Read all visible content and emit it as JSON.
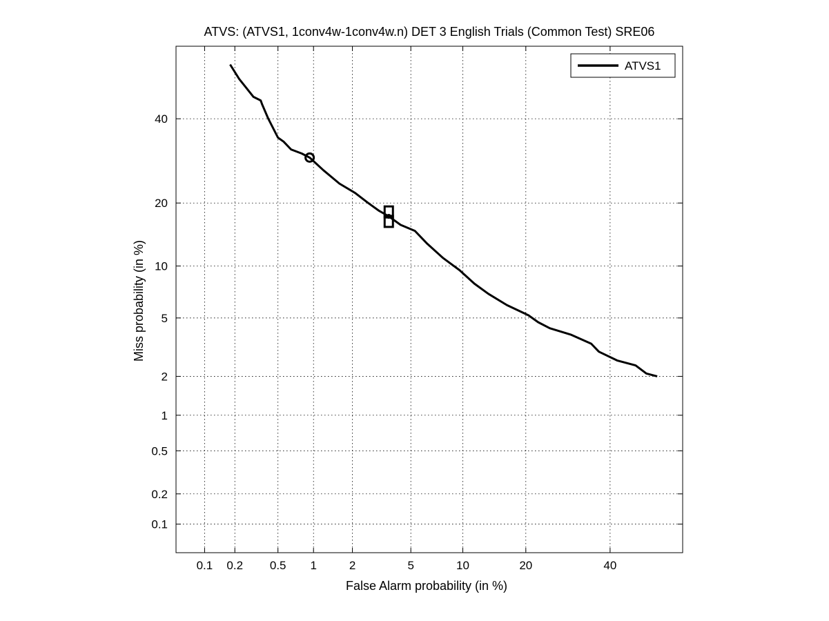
{
  "chart_data": {
    "type": "line",
    "title": "ATVS: (ATVS1, 1conv4w-1conv4w.n) DET 3 English Trials (Common Test) SRE06",
    "xlabel": "False Alarm probability (in %)",
    "ylabel": "Miss probability (in %)",
    "x_scale": "probit",
    "y_scale": "probit",
    "xlim": [
      0.05,
      60
    ],
    "ylim": [
      0.05,
      60
    ],
    "grid": true,
    "legend_position": "top-right",
    "x_ticks": [
      {
        "value": 0.1,
        "label": "0.1"
      },
      {
        "value": 0.2,
        "label": "0.2"
      },
      {
        "value": 0.5,
        "label": "0.5"
      },
      {
        "value": 1,
        "label": "1"
      },
      {
        "value": 2,
        "label": "2"
      },
      {
        "value": 5,
        "label": "5"
      },
      {
        "value": 10,
        "label": "10"
      },
      {
        "value": 20,
        "label": "20"
      },
      {
        "value": 40,
        "label": "40"
      }
    ],
    "y_ticks": [
      {
        "value": 0.1,
        "label": "0.1"
      },
      {
        "value": 0.2,
        "label": "0.2"
      },
      {
        "value": 0.5,
        "label": "0.5"
      },
      {
        "value": 1,
        "label": "1"
      },
      {
        "value": 2,
        "label": "2"
      },
      {
        "value": 5,
        "label": "5"
      },
      {
        "value": 10,
        "label": "10"
      },
      {
        "value": 20,
        "label": "20"
      },
      {
        "value": 40,
        "label": "40"
      }
    ],
    "series": [
      {
        "name": "ATVS1",
        "color": "#000000",
        "x": [
          0.18,
          0.22,
          0.3,
          0.35,
          0.36,
          0.41,
          0.5,
          0.56,
          0.65,
          0.8,
          0.93,
          1.2,
          1.6,
          2.1,
          2.6,
          3.1,
          3.6,
          4.3,
          5.3,
          6.3,
          7.8,
          9.6,
          11.5,
          13.5,
          16.5,
          20.5,
          22.5,
          25,
          30,
          35,
          37,
          42,
          47,
          50,
          53
        ],
        "y": [
          55,
          51,
          46,
          45,
          44,
          40,
          35,
          34,
          32,
          31,
          30,
          27,
          24,
          22,
          20,
          18.5,
          17.5,
          16,
          15,
          13,
          11,
          9.5,
          8,
          7,
          6,
          5.2,
          4.7,
          4.3,
          3.9,
          3.4,
          3,
          2.6,
          2.4,
          2.1,
          2.0
        ]
      }
    ],
    "markers": [
      {
        "shape": "circle",
        "x": 0.93,
        "y": 30
      },
      {
        "shape": "square",
        "x": 3.6,
        "y": 18.3
      },
      {
        "shape": "square",
        "x": 3.6,
        "y": 16.6
      },
      {
        "shape": "dot",
        "x": 3.6,
        "y": 17.5
      }
    ]
  }
}
